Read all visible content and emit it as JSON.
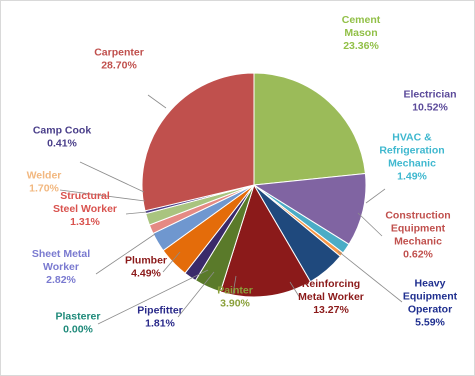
{
  "chart_data": {
    "type": "pie",
    "start_angle_deg": 0,
    "direction": "clockwise",
    "slices": [
      {
        "name": "Cement Mason",
        "value": 23.36,
        "label": "23.36%",
        "color": "#9bbb59",
        "text_color": "#92c048"
      },
      {
        "name": "Electrician",
        "value": 10.52,
        "label": "10.52%",
        "color": "#8064a2",
        "text_color": "#5b4a9a"
      },
      {
        "name": "HVAC & Refrigeration Mechanic",
        "name_lines": [
          "HVAC &",
          "Refrigeration",
          "Mechanic"
        ],
        "value": 1.49,
        "label": "1.49%",
        "color": "#4bacc6",
        "text_color": "#3fb8cf"
      },
      {
        "name": "Construction Equipment Mechanic",
        "name_lines": [
          "Construction",
          "Equipment",
          "Mechanic"
        ],
        "value": 0.62,
        "label": "0.62%",
        "color": "#f79646",
        "text_color": "#c0504d"
      },
      {
        "name": "Heavy Equipment Operator",
        "name_lines": [
          "Heavy",
          "Equipment",
          "Operator"
        ],
        "value": 5.59,
        "label": "5.59%",
        "color": "#1f497d",
        "text_color": "#1f2f8f"
      },
      {
        "name": "Reinforcing Metal Worker",
        "name_lines": [
          "Reinforcing",
          "Metal Worker"
        ],
        "value": 13.27,
        "label": "13.27%",
        "color": "#8b1a1a",
        "text_color": "#8b1a1a"
      },
      {
        "name": "Painter",
        "value": 3.9,
        "label": "3.90%",
        "color": "#5a7a2a",
        "text_color": "#8aa03a"
      },
      {
        "name": "Pipefitter",
        "value": 1.81,
        "label": "1.81%",
        "color": "#3a2a6a",
        "text_color": "#2a2a8a"
      },
      {
        "name": "Plasterer",
        "value": 0.0,
        "label": "0.00%",
        "color": "#1f7a7a",
        "text_color": "#1f8a7a"
      },
      {
        "name": "Plumber",
        "value": 4.49,
        "label": "4.49%",
        "color": "#e46c0a",
        "text_color": "#8b1a1a"
      },
      {
        "name": "Sheet Metal Worker",
        "name_lines": [
          "Sheet Metal",
          "Worker"
        ],
        "value": 2.82,
        "label": "2.82%",
        "color": "#6f97cf",
        "text_color": "#7a7ad0"
      },
      {
        "name": "Structural Steel Worker",
        "name_lines": [
          "Structural",
          "Steel Worker"
        ],
        "value": 1.31,
        "label": "1.31%",
        "color": "#e58a84",
        "text_color": "#d9534f"
      },
      {
        "name": "Welder",
        "value": 1.7,
        "label": "1.70%",
        "color": "#a9c47f",
        "text_color": "#f2b880"
      },
      {
        "name": "Camp Cook",
        "value": 0.41,
        "label": "0.41%",
        "color": "#4a3f8a",
        "text_color": "#4a3f8a"
      },
      {
        "name": "Carpenter",
        "value": 28.7,
        "label": "28.70%",
        "color": "#c0504d",
        "text_color": "#c0504d"
      }
    ]
  }
}
